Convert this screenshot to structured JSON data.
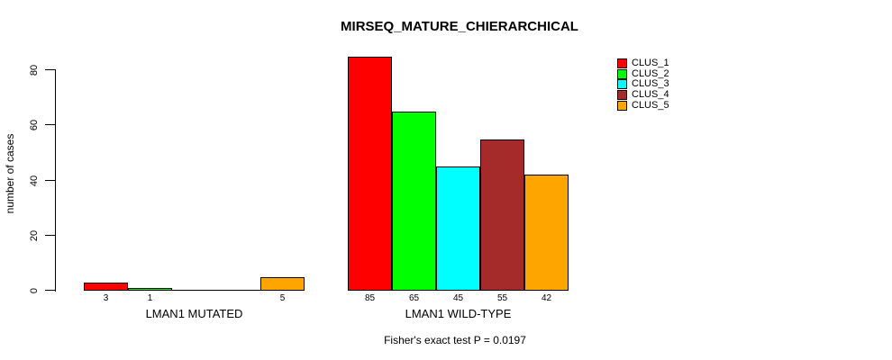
{
  "chart_data": {
    "type": "bar",
    "title": "MIRSEQ_MATURE_CHIERARCHICAL",
    "ylabel": "number of cases",
    "xlabel": "",
    "ylim": [
      0,
      85
    ],
    "yticks": [
      0,
      20,
      40,
      60,
      80
    ],
    "grid": false,
    "legend_position": "top-right",
    "annotation": "Fisher's exact test P = 0.0197",
    "categories": [
      "LMAN1 MUTATED",
      "LMAN1 WILD-TYPE"
    ],
    "series": [
      {
        "name": "CLUS_1",
        "color": "#FF0000",
        "values": [
          3,
          85
        ]
      },
      {
        "name": "CLUS_2",
        "color": "#00FF00",
        "values": [
          1,
          65
        ]
      },
      {
        "name": "CLUS_3",
        "color": "#00FFFF",
        "values": [
          0,
          45
        ]
      },
      {
        "name": "CLUS_4",
        "color": "#A52A2A",
        "values": [
          0,
          55
        ]
      },
      {
        "name": "CLUS_5",
        "color": "#FFA500",
        "values": [
          5,
          42
        ]
      }
    ],
    "bar_value_labels": [
      [
        "3",
        "1",
        "",
        "",
        "5"
      ],
      [
        "85",
        "65",
        "45",
        "55",
        "42"
      ]
    ]
  }
}
